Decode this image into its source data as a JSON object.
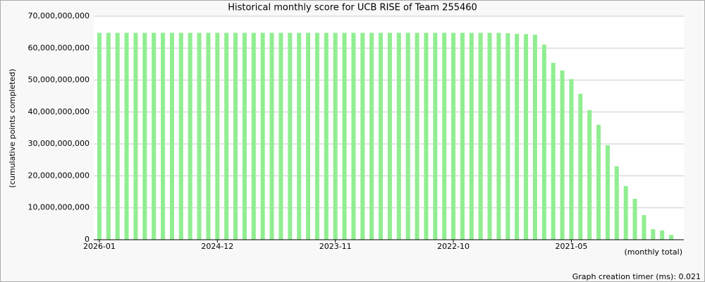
{
  "chart_data": {
    "type": "bar",
    "title": "Historical monthly score for UCB RISE of Team 255460",
    "y_label": "(cumulative points completed)",
    "x_label": "(monthly total)",
    "footer": "Graph creation timer (ms): 0.021",
    "color": "#90ee90",
    "grid": true,
    "categories": [
      "2026-01",
      null,
      null,
      null,
      null,
      null,
      null,
      null,
      null,
      null,
      null,
      null,
      null,
      "2024-12",
      null,
      null,
      null,
      null,
      null,
      null,
      null,
      null,
      null,
      null,
      null,
      null,
      "2023-11",
      null,
      null,
      null,
      null,
      null,
      null,
      null,
      null,
      null,
      null,
      null,
      null,
      "2022-10",
      null,
      null,
      null,
      null,
      null,
      null,
      null,
      null,
      null,
      null,
      null,
      null,
      "2021-05",
      null,
      null,
      null,
      null,
      null,
      null,
      null,
      null,
      null,
      null,
      null
    ],
    "values": [
      64800000000,
      64800000000,
      64800000000,
      64800000000,
      64800000000,
      64800000000,
      64800000000,
      64800000000,
      64800000000,
      64800000000,
      64800000000,
      64800000000,
      64800000000,
      64800000000,
      64800000000,
      64800000000,
      64800000000,
      64800000000,
      64800000000,
      64800000000,
      64800000000,
      64800000000,
      64800000000,
      64800000000,
      64800000000,
      64800000000,
      64800000000,
      64800000000,
      64800000000,
      64800000000,
      64800000000,
      64800000000,
      64800000000,
      64800000000,
      64800000000,
      64800000000,
      64800000000,
      64800000000,
      64800000000,
      64800000000,
      64800000000,
      64800000000,
      64800000000,
      64800000000,
      64800000000,
      64700000000,
      64500000000,
      64400000000,
      64200000000,
      61100000000,
      55400000000,
      53000000000,
      50300000000,
      45700000000,
      40600000000,
      36000000000,
      29600000000,
      23000000000,
      16800000000,
      12800000000,
      7700000000,
      3300000000,
      2900000000,
      1500000000
    ],
    "ylim": [
      0,
      70000000000
    ],
    "yticks": [
      0,
      {
        "value": 10000000000,
        "label": "10,000,000,000"
      },
      {
        "value": 20000000000,
        "label": "20,000,000,000"
      },
      {
        "value": 30000000000,
        "label": "30,000,000,000"
      },
      {
        "value": 40000000000,
        "label": "40,000,000,000"
      },
      {
        "value": 50000000000,
        "label": "50,000,000,000"
      },
      {
        "value": 60000000000,
        "label": "60,000,000,000"
      },
      {
        "value": 70000000000,
        "label": "70,000,000,000"
      }
    ]
  }
}
